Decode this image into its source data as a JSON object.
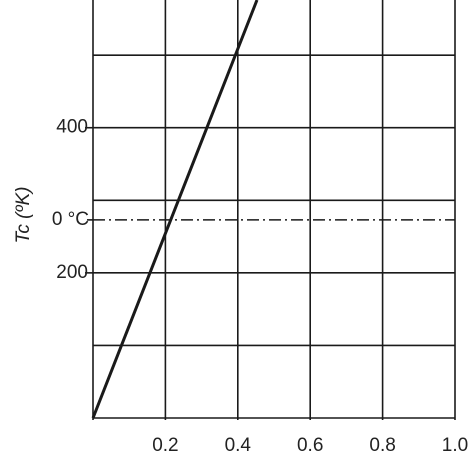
{
  "chart_data": {
    "type": "line",
    "y_label": "Tc (ºK)",
    "xlim": [
      0,
      1.0
    ],
    "ylim": [
      0,
      576
    ],
    "xticks": [
      0.2,
      0.4,
      0.6,
      0.8,
      {
        "value": 1,
        "label": "1.0"
      }
    ],
    "yticks": [
      200,
      400
    ],
    "ygrid": [
      0,
      100,
      200,
      300,
      400,
      500
    ],
    "xgrid": [
      0,
      0.2,
      0.4,
      0.6,
      0.8,
      1
    ],
    "grid": true,
    "reference_line": {
      "y": 273,
      "label": "0 °C"
    },
    "series": [
      {
        "color": "#1a1a1a",
        "x": [
          0,
          0.453
        ],
        "values": [
          0,
          576
        ]
      }
    ]
  }
}
